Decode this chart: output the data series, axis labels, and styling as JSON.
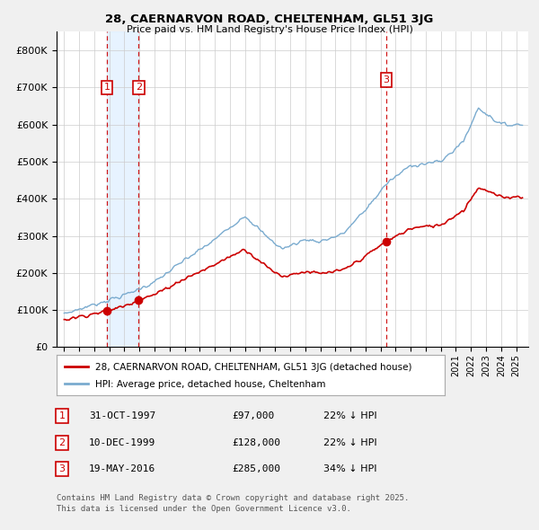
{
  "title": "28, CAERNARVON ROAD, CHELTENHAM, GL51 3JG",
  "subtitle": "Price paid vs. HM Land Registry's House Price Index (HPI)",
  "red_label": "28, CAERNARVON ROAD, CHELTENHAM, GL51 3JG (detached house)",
  "blue_label": "HPI: Average price, detached house, Cheltenham",
  "transactions": [
    {
      "num": 1,
      "date": "31-OCT-1997",
      "price": 97000,
      "pct": "22%",
      "dir": "↓",
      "year": 1997.83
    },
    {
      "num": 2,
      "date": "10-DEC-1999",
      "price": 128000,
      "pct": "22%",
      "dir": "↓",
      "year": 1999.94
    },
    {
      "num": 3,
      "date": "19-MAY-2016",
      "price": 285000,
      "pct": "34%",
      "dir": "↓",
      "year": 2016.38
    }
  ],
  "footnote1": "Contains HM Land Registry data © Crown copyright and database right 2025.",
  "footnote2": "This data is licensed under the Open Government Licence v3.0.",
  "bg_color": "#f0f0f0",
  "plot_bg_color": "#ffffff",
  "red_color": "#cc0000",
  "blue_color": "#7aabcf",
  "blue_fill_color": "#ddeeff",
  "dashed_color": "#cc0000",
  "ylim": [
    0,
    850000
  ],
  "yticks": [
    0,
    100000,
    200000,
    300000,
    400000,
    500000,
    600000,
    700000,
    800000
  ],
  "xlim_start": 1994.5,
  "xlim_end": 2025.8
}
